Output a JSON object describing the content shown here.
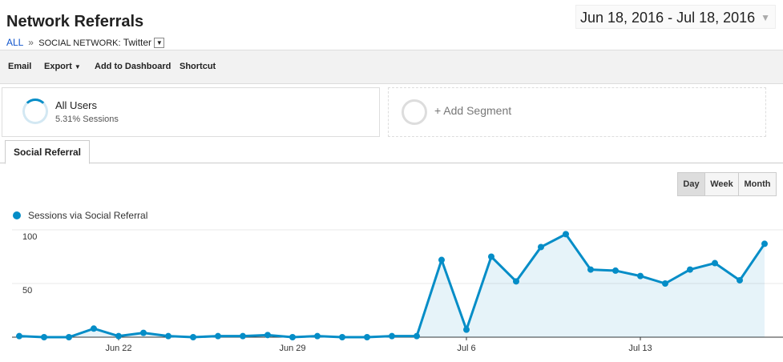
{
  "header": {
    "title": "Network Referrals",
    "crumb_root": "ALL",
    "crumb_sep": "»",
    "crumb_label": "SOCIAL NETWORK:",
    "crumb_value": "Twitter",
    "date_range": "Jun 18, 2016 - Jul 18, 2016"
  },
  "toolbar": [
    "Email",
    "Export",
    "Add to Dashboard",
    "Shortcut"
  ],
  "segments": {
    "name": "All Users",
    "detail": "5.31% Sessions",
    "add": "+ Add Segment"
  },
  "tab": "Social Referral",
  "granularity": [
    "Day",
    "Week",
    "Month"
  ],
  "chart_data": {
    "type": "line",
    "categories": [
      null,
      null,
      null,
      null,
      "Jun 22",
      null,
      null,
      null,
      null,
      null,
      null,
      "Jun 29",
      null,
      null,
      null,
      null,
      null,
      null,
      "Jul 6",
      null,
      null,
      null,
      null,
      null,
      null,
      "Jul 13",
      null,
      null,
      null,
      null,
      null
    ],
    "series": [
      {
        "name": "Sessions via Social Referral",
        "color": "#058dc7",
        "values": [
          1,
          0,
          0,
          8,
          1,
          4,
          1,
          0,
          1,
          1,
          2,
          0,
          1,
          0,
          0,
          1,
          1,
          72,
          7,
          75,
          52,
          84,
          96,
          63,
          62,
          57,
          50,
          63,
          69,
          53,
          87
        ]
      }
    ],
    "ylim": [
      0,
      100
    ],
    "yticks": [
      50,
      100
    ],
    "grid": true
  }
}
